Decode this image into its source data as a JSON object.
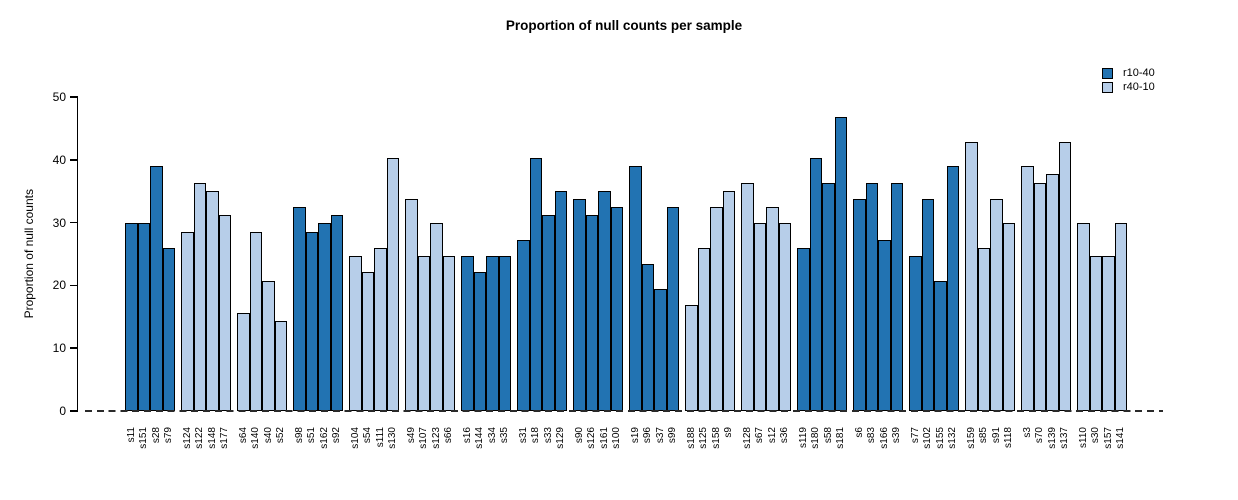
{
  "chart_data": {
    "type": "bar",
    "title": "Proportion of null counts per sample",
    "xlabel": "",
    "ylabel": "Proportion of null counts",
    "ylim": [
      0,
      50
    ],
    "yticks": [
      0,
      10,
      20,
      30,
      40,
      50
    ],
    "grid": false,
    "legend_position": "top-right",
    "group_size": 4,
    "zero_line_style": "dashed",
    "legend": [
      {
        "label": "r10-40",
        "color": "#2273b2"
      },
      {
        "label": "r40-10",
        "color": "#b7cee9"
      }
    ],
    "bars": [
      {
        "label": "s11",
        "value": 29.87,
        "series": "r10-40"
      },
      {
        "label": "s151",
        "value": 29.87,
        "series": "r10-40"
      },
      {
        "label": "s28",
        "value": 38.96,
        "series": "r10-40"
      },
      {
        "label": "s79",
        "value": 25.97,
        "series": "r10-40"
      },
      {
        "label": "s124",
        "value": 28.57,
        "series": "r40-10"
      },
      {
        "label": "s122",
        "value": 36.36,
        "series": "r40-10"
      },
      {
        "label": "s148",
        "value": 35.06,
        "series": "r40-10"
      },
      {
        "label": "s177",
        "value": 31.17,
        "series": "r40-10"
      },
      {
        "label": "s64",
        "value": 15.58,
        "series": "r40-10"
      },
      {
        "label": "s140",
        "value": 28.57,
        "series": "r40-10"
      },
      {
        "label": "s40",
        "value": 20.78,
        "series": "r40-10"
      },
      {
        "label": "s52",
        "value": 14.29,
        "series": "r40-10"
      },
      {
        "label": "s98",
        "value": 32.47,
        "series": "r10-40"
      },
      {
        "label": "s51",
        "value": 28.57,
        "series": "r10-40"
      },
      {
        "label": "s162",
        "value": 29.87,
        "series": "r10-40"
      },
      {
        "label": "s92",
        "value": 31.17,
        "series": "r10-40"
      },
      {
        "label": "s104",
        "value": 24.68,
        "series": "r40-10"
      },
      {
        "label": "s54",
        "value": 22.08,
        "series": "r40-10"
      },
      {
        "label": "s111",
        "value": 25.97,
        "series": "r40-10"
      },
      {
        "label": "s130",
        "value": 40.26,
        "series": "r40-10"
      },
      {
        "label": "s49",
        "value": 33.77,
        "series": "r40-10"
      },
      {
        "label": "s107",
        "value": 24.68,
        "series": "r40-10"
      },
      {
        "label": "s123",
        "value": 29.87,
        "series": "r40-10"
      },
      {
        "label": "s66",
        "value": 24.68,
        "series": "r40-10"
      },
      {
        "label": "s16",
        "value": 24.68,
        "series": "r10-40"
      },
      {
        "label": "s144",
        "value": 22.08,
        "series": "r10-40"
      },
      {
        "label": "s34",
        "value": 24.68,
        "series": "r10-40"
      },
      {
        "label": "s35",
        "value": 24.68,
        "series": "r10-40"
      },
      {
        "label": "s31",
        "value": 27.27,
        "series": "r10-40"
      },
      {
        "label": "s18",
        "value": 40.26,
        "series": "r10-40"
      },
      {
        "label": "s33",
        "value": 31.17,
        "series": "r10-40"
      },
      {
        "label": "s129",
        "value": 35.06,
        "series": "r10-40"
      },
      {
        "label": "s90",
        "value": 33.77,
        "series": "r10-40"
      },
      {
        "label": "s126",
        "value": 31.17,
        "series": "r10-40"
      },
      {
        "label": "s161",
        "value": 35.06,
        "series": "r10-40"
      },
      {
        "label": "s100",
        "value": 32.47,
        "series": "r10-40"
      },
      {
        "label": "s19",
        "value": 38.96,
        "series": "r10-40"
      },
      {
        "label": "s96",
        "value": 23.38,
        "series": "r10-40"
      },
      {
        "label": "s37",
        "value": 19.48,
        "series": "r10-40"
      },
      {
        "label": "s99",
        "value": 32.47,
        "series": "r10-40"
      },
      {
        "label": "s188",
        "value": 16.88,
        "series": "r40-10"
      },
      {
        "label": "s125",
        "value": 25.97,
        "series": "r40-10"
      },
      {
        "label": "s158",
        "value": 32.47,
        "series": "r40-10"
      },
      {
        "label": "s9",
        "value": 35.06,
        "series": "r40-10"
      },
      {
        "label": "s128",
        "value": 36.36,
        "series": "r40-10"
      },
      {
        "label": "s67",
        "value": 29.87,
        "series": "r40-10"
      },
      {
        "label": "s12",
        "value": 32.47,
        "series": "r40-10"
      },
      {
        "label": "s36",
        "value": 29.87,
        "series": "r40-10"
      },
      {
        "label": "s119",
        "value": 25.97,
        "series": "r10-40"
      },
      {
        "label": "s180",
        "value": 40.26,
        "series": "r10-40"
      },
      {
        "label": "s58",
        "value": 36.36,
        "series": "r10-40"
      },
      {
        "label": "s181",
        "value": 46.75,
        "series": "r10-40"
      },
      {
        "label": "s6",
        "value": 33.77,
        "series": "r10-40"
      },
      {
        "label": "s83",
        "value": 36.36,
        "series": "r10-40"
      },
      {
        "label": "s166",
        "value": 27.27,
        "series": "r10-40"
      },
      {
        "label": "s39",
        "value": 36.36,
        "series": "r10-40"
      },
      {
        "label": "s77",
        "value": 24.68,
        "series": "r10-40"
      },
      {
        "label": "s102",
        "value": 33.77,
        "series": "r10-40"
      },
      {
        "label": "s155",
        "value": 20.78,
        "series": "r10-40"
      },
      {
        "label": "s132",
        "value": 38.96,
        "series": "r10-40"
      },
      {
        "label": "s159",
        "value": 42.86,
        "series": "r40-10"
      },
      {
        "label": "s85",
        "value": 25.97,
        "series": "r40-10"
      },
      {
        "label": "s91",
        "value": 33.77,
        "series": "r40-10"
      },
      {
        "label": "s118",
        "value": 29.87,
        "series": "r40-10"
      },
      {
        "label": "s3",
        "value": 38.96,
        "series": "r40-10"
      },
      {
        "label": "s70",
        "value": 36.36,
        "series": "r40-10"
      },
      {
        "label": "s139",
        "value": 37.66,
        "series": "r40-10"
      },
      {
        "label": "s137",
        "value": 42.86,
        "series": "r40-10"
      },
      {
        "label": "s110",
        "value": 29.87,
        "series": "r40-10"
      },
      {
        "label": "s30",
        "value": 24.68,
        "series": "r40-10"
      },
      {
        "label": "s157",
        "value": 24.68,
        "series": "r40-10"
      },
      {
        "label": "s141",
        "value": 29.87,
        "series": "r40-10"
      }
    ]
  }
}
